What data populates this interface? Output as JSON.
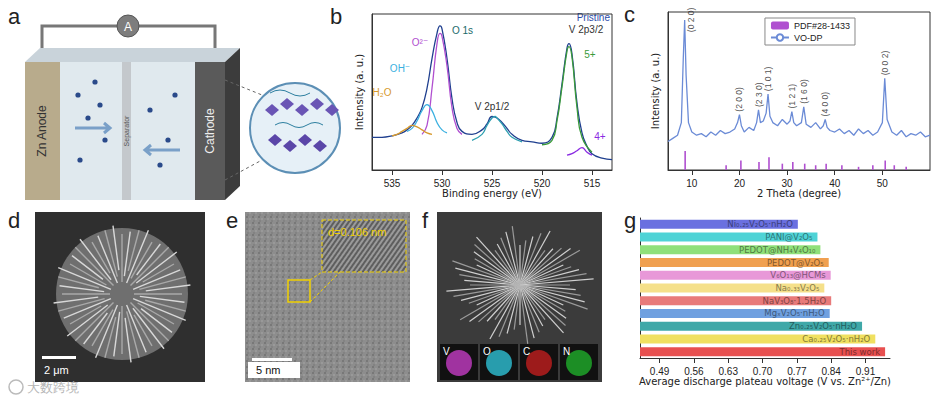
{
  "panels": {
    "a": {
      "label": "a",
      "texts": {
        "ammeter": "A",
        "anode": "Zn Anode",
        "separator": "Separator",
        "cathode": "Cathode"
      }
    },
    "d": {
      "label": "d",
      "scale_bar": "2 μm"
    },
    "e": {
      "label": "e",
      "scale_bar": "5 nm",
      "annotation": "d=0.106 nm"
    },
    "f": {
      "label": "f",
      "maps": [
        "V",
        "O",
        "C",
        "N"
      ]
    }
  },
  "watermark": "大数跨境",
  "chart_data": [
    {
      "label": "b",
      "type": "line",
      "x_label": "Binding energy (eV)",
      "y_label": "Intensity (a. u.)",
      "xlim": [
        537,
        513
      ],
      "xticks": [
        535,
        530,
        525,
        520,
        515
      ],
      "ylim": [
        0,
        105
      ],
      "tick_labels": "x",
      "annotations": [
        "O 1s",
        "V 2p1/2",
        "V 2p3/2",
        "Pristine"
      ],
      "series": [
        {
          "color": "#1f3f8f",
          "x": [
            537,
            536,
            535,
            534,
            533.5,
            533,
            532.5,
            532,
            531.5,
            531,
            530.5,
            530.2,
            530,
            529.5,
            529,
            528.5,
            528,
            527,
            526,
            525.5,
            525,
            524.5,
            524,
            523.5,
            523,
            522,
            521,
            520,
            519,
            518.5,
            518,
            517.5,
            517.3,
            517,
            516.5,
            516,
            515.5,
            515,
            514,
            513
          ],
          "values": [
            22,
            22,
            23,
            25,
            27,
            30,
            35,
            42,
            55,
            75,
            92,
            97,
            95,
            75,
            48,
            32,
            26,
            24,
            27,
            31,
            36,
            35,
            32,
            28,
            24,
            20,
            19,
            18,
            22,
            35,
            58,
            82,
            85,
            78,
            45,
            25,
            16,
            11,
            8,
            7
          ]
        },
        {
          "name": "O²⁻",
          "color": "#b04fd0",
          "x": [
            532,
            531.5,
            531,
            530.5,
            530.2,
            530,
            529.5,
            529,
            528.5,
            528
          ],
          "values": [
            24,
            30,
            55,
            85,
            92,
            90,
            70,
            42,
            28,
            24
          ]
        },
        {
          "name": "OH⁻",
          "color": "#3ab0e0",
          "x": [
            533.5,
            533,
            532.5,
            532,
            531.5,
            531,
            530.5,
            530,
            529.5
          ],
          "values": [
            26,
            28,
            33,
            40,
            44,
            40,
            32,
            27,
            25
          ]
        },
        {
          "name": "H₂O",
          "color": "#d79a2e",
          "x": [
            535,
            534.5,
            534,
            533.5,
            533,
            532.5,
            532,
            531.5,
            531
          ],
          "values": [
            23,
            24,
            26,
            28,
            30,
            29,
            27,
            25,
            24
          ]
        },
        {
          "color": "#2e9fb0",
          "x": [
            527,
            526,
            525.5,
            525,
            524.7,
            524.5,
            524,
            523.5,
            523,
            522
          ],
          "values": [
            20,
            24,
            30,
            35,
            36,
            35,
            31,
            26,
            22,
            19
          ]
        },
        {
          "name": "5+",
          "color": "#3a9a3a",
          "x": [
            520,
            519,
            518.5,
            518,
            517.5,
            517.3,
            517,
            516.5,
            516,
            515
          ],
          "values": [
            17,
            20,
            33,
            56,
            80,
            83,
            76,
            42,
            22,
            12
          ]
        },
        {
          "name": "4+",
          "color": "#8a2be2",
          "x": [
            517.5,
            517,
            516.5,
            516,
            515.5,
            515
          ],
          "values": [
            10,
            11,
            13,
            15,
            12,
            10
          ]
        }
      ]
    },
    {
      "label": "c",
      "type": "line",
      "x_label": "2 Theta (degree)",
      "y_label": "Intensity (a. u.)",
      "xlim": [
        5,
        60
      ],
      "xticks": [
        10,
        20,
        30,
        40,
        50
      ],
      "ylim": [
        0,
        100
      ],
      "tick_labels": "x",
      "legend": "upper right",
      "series": [
        {
          "name": "PDF#28-1433",
          "type": "bar",
          "color": "#b050d0",
          "x": [
            8.6,
            17.2,
            20.3,
            24.1,
            26.2,
            29,
            31.2,
            33.7,
            36,
            38.2,
            41.5,
            45,
            48,
            50.6,
            52.5,
            55
          ],
          "values": [
            12,
            3,
            6,
            5,
            8,
            4,
            5,
            4,
            3,
            4,
            3,
            2,
            3,
            6,
            3,
            2
          ]
        },
        {
          "name": "VO-DP",
          "type": "line",
          "color": "#6b8bd6",
          "x": [
            5,
            6,
            7,
            7.8,
            8.2,
            8.5,
            8.8,
            9.3,
            10,
            11,
            12,
            13,
            14,
            15,
            16,
            17,
            18,
            19,
            19.6,
            20,
            20.4,
            21,
            22,
            23,
            23.6,
            24,
            24.4,
            25,
            25.6,
            26,
            26.4,
            27,
            28,
            29,
            30,
            30.6,
            31,
            31.4,
            32,
            33,
            33.5,
            34,
            35,
            36,
            37,
            37.6,
            38,
            38.4,
            39,
            40,
            41,
            42,
            43,
            44,
            45,
            46,
            47,
            48,
            49,
            50,
            50.5,
            51,
            52,
            53,
            54,
            55,
            56,
            57,
            58,
            59,
            60
          ],
          "values": [
            18,
            20,
            22,
            30,
            70,
            95,
            60,
            30,
            24,
            22,
            23,
            21,
            24,
            22,
            25,
            23,
            24,
            26,
            30,
            35,
            28,
            24,
            27,
            25,
            30,
            38,
            30,
            31,
            36,
            48,
            34,
            30,
            28,
            32,
            29,
            31,
            37,
            30,
            28,
            30,
            40,
            29,
            27,
            30,
            26,
            28,
            32,
            27,
            25,
            24,
            26,
            23,
            25,
            22,
            26,
            23,
            25,
            22,
            24,
            30,
            58,
            32,
            24,
            22,
            25,
            21,
            23,
            22,
            24,
            21,
            22
          ]
        }
      ],
      "peaks": {
        "labels": [
          "(0 2 0)",
          "(2 0 0)",
          "(2 3 0)",
          "(1 0 1)",
          "(1 2 1)",
          "(1 6 0)",
          "(4 0 0)",
          "(0 0 2)"
        ],
        "x": [
          8.5,
          20,
          24,
          26,
          31,
          33.5,
          38,
          50.5
        ],
        "values": [
          95,
          35,
          38,
          48,
          37,
          40,
          32,
          58
        ]
      }
    },
    {
      "label": "g",
      "type": "bar",
      "orientation": "horizontal",
      "tick_labels": "x",
      "x_label": "Average discharge plateau voltage (V vs. Zn²⁺/Zn)",
      "categories": [
        "Ni₀.₂₅V₂O₅·nH₂O",
        "PANI@V₂O₅",
        "PEDOT@NH₄V₄O₁₀",
        "PEDOT@V₂O₅",
        "V₆O₁₃@HCMs",
        "Na₀.₃₃V₂O₅",
        "NaV₃O₈·1.5H₂O",
        "MgₓV₂O₅·nH₂O",
        "Zn₀.₂₅V₂O₅·nH₂O",
        "Ca₀.₂₅V₂O₅·nH₂O",
        "This work"
      ],
      "values": [
        0.772,
        0.812,
        0.818,
        0.835,
        0.839,
        0.826,
        0.84,
        0.837,
        0.903,
        0.93,
        0.95
      ],
      "colors": [
        "#6a70e0",
        "#4fd3d6",
        "#8fe07a",
        "#f0a050",
        "#e898d8",
        "#f5e08a",
        "#e87a7a",
        "#6fa0e0",
        "#3fa8a8",
        "#f0e060",
        "#e85050"
      ],
      "xlim": [
        0.45,
        0.96
      ],
      "xticks": [
        0.49,
        0.56,
        0.63,
        {
          "value": 0.7,
          "label": "0.70"
        },
        0.77,
        0.84,
        0.91
      ]
    }
  ]
}
